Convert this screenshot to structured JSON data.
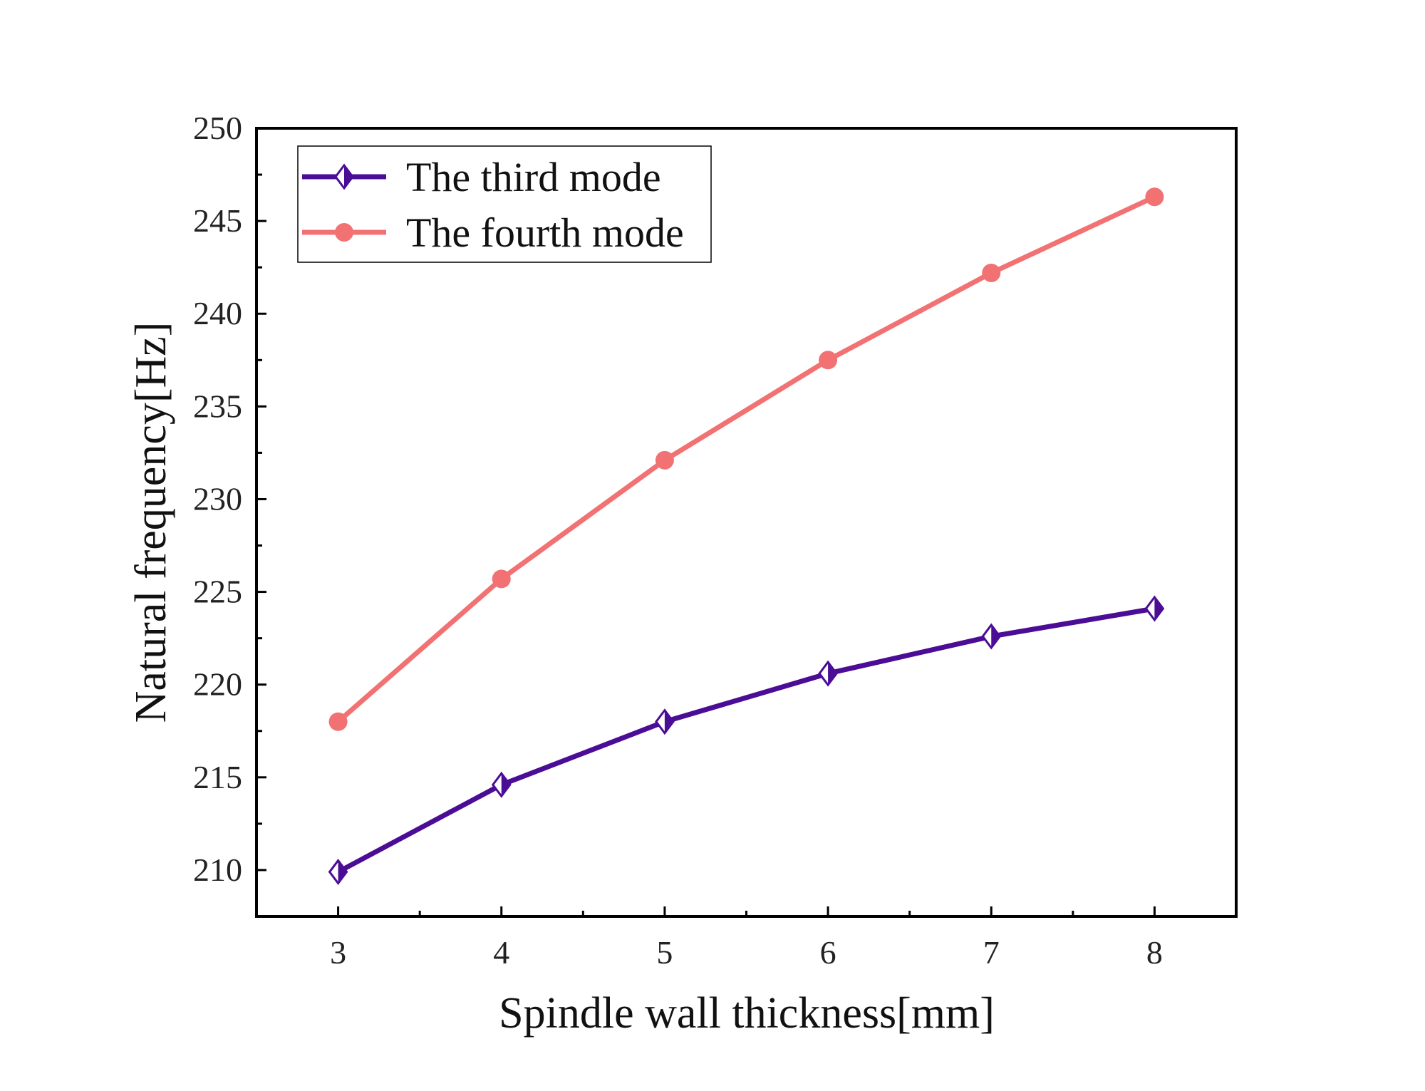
{
  "chart_data": {
    "type": "line",
    "title": "",
    "xlabel": "Spindle wall thickness[mm]",
    "ylabel": "Natural frequency[Hz]",
    "x": [
      3,
      4,
      5,
      6,
      7,
      8
    ],
    "x_ticks": [
      "3",
      "4",
      "5",
      "6",
      "7",
      "8"
    ],
    "xlim": [
      2.5,
      8.5
    ],
    "y_ticks": [
      "210",
      "215",
      "220",
      "225",
      "230",
      "235",
      "240",
      "245",
      "250"
    ],
    "ylim": [
      207.5,
      250
    ],
    "grid": false,
    "legend_position": "top-left",
    "series": [
      {
        "name": "The third mode",
        "marker": "half-filled-diamond",
        "color": "#4B0C96",
        "values": [
          209.9,
          214.6,
          218.0,
          220.6,
          222.6,
          224.1
        ]
      },
      {
        "name": "The fourth mode",
        "marker": "circle",
        "color": "#F27173",
        "values": [
          218.0,
          225.7,
          232.1,
          237.5,
          242.2,
          246.3
        ]
      }
    ]
  }
}
